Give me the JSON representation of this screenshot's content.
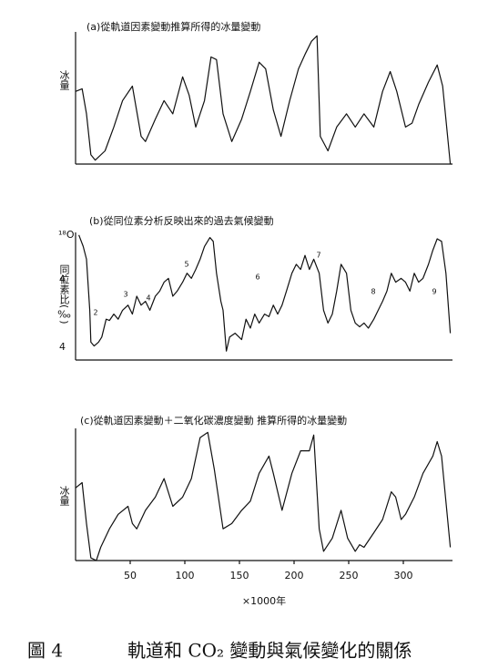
{
  "chart_data": [
    {
      "type": "line",
      "title": "(a)從軌道因素變動推算所得的冰量變動",
      "y_label": "冰量",
      "xlim": [
        0,
        345
      ],
      "ylim": [
        0,
        100
      ],
      "x": [
        0,
        6,
        10,
        14,
        18,
        27,
        35,
        43,
        52,
        60,
        64,
        73,
        81,
        89,
        98,
        104,
        110,
        118,
        124,
        129,
        135,
        143,
        152,
        160,
        168,
        174,
        181,
        188,
        196,
        204,
        210,
        216,
        221,
        224,
        231,
        239,
        248,
        256,
        264,
        273,
        281,
        288,
        294,
        302,
        308,
        314,
        323,
        331,
        336,
        343
      ],
      "series": [
        {
          "color": "#111111",
          "values": [
            55,
            57,
            38,
            7,
            3,
            10,
            28,
            48,
            59,
            21,
            17,
            34,
            48,
            38,
            66,
            52,
            28,
            48,
            81,
            79,
            38,
            17,
            34,
            55,
            77,
            72,
            41,
            21,
            48,
            72,
            83,
            93,
            97,
            21,
            10,
            28,
            38,
            28,
            38,
            28,
            55,
            70,
            55,
            28,
            31,
            45,
            62,
            75,
            59,
            0
          ]
        }
      ]
    },
    {
      "type": "line",
      "title": "(b)從同位素分析反映出來的過去氣候變動",
      "y_label_top": "¹⁸O",
      "y_label": "同位素比(‰)",
      "side_labels": [
        "4",
        "4"
      ],
      "annotations": [
        "2",
        "3",
        "4",
        "5",
        "6",
        "7",
        "8",
        "9"
      ],
      "xlim": [
        0,
        345
      ],
      "ylim": [
        0,
        100
      ],
      "x": [
        3,
        7,
        10,
        13,
        14,
        17,
        21,
        24,
        28,
        31,
        35,
        39,
        43,
        48,
        52,
        56,
        60,
        64,
        68,
        73,
        77,
        81,
        85,
        89,
        93,
        98,
        102,
        106,
        110,
        114,
        118,
        123,
        126,
        129,
        133,
        135,
        138,
        141,
        146,
        152,
        156,
        160,
        164,
        168,
        173,
        177,
        181,
        185,
        189,
        193,
        198,
        202,
        206,
        210,
        214,
        218,
        223,
        227,
        231,
        235,
        239,
        243,
        248,
        252,
        256,
        260,
        264,
        268,
        273,
        277,
        281,
        285,
        289,
        293,
        298,
        302,
        306,
        310,
        314,
        318,
        323,
        327,
        331,
        335,
        339,
        343
      ],
      "series": [
        {
          "color": "#111111",
          "values": [
            98,
            89,
            79,
            39,
            14,
            11,
            14,
            18,
            32,
            31,
            36,
            32,
            39,
            43,
            36,
            50,
            43,
            46,
            39,
            50,
            54,
            61,
            64,
            50,
            54,
            61,
            68,
            64,
            71,
            79,
            89,
            96,
            93,
            68,
            46,
            39,
            7,
            18,
            21,
            16,
            32,
            25,
            36,
            29,
            36,
            34,
            43,
            36,
            43,
            54,
            68,
            75,
            71,
            82,
            71,
            79,
            68,
            39,
            29,
            36,
            54,
            75,
            68,
            39,
            29,
            26,
            29,
            25,
            32,
            39,
            46,
            54,
            68,
            61,
            64,
            61,
            54,
            68,
            61,
            64,
            75,
            86,
            95,
            93,
            68,
            21
          ]
        }
      ]
    },
    {
      "type": "line",
      "title": "(c)從軌道因素變動＋二氧化碳濃度變動 推算所得的冰量變動",
      "y_label": "冰量",
      "x_label": "×1000年",
      "xlim": [
        0,
        345
      ],
      "ylim": [
        0,
        100
      ],
      "xticks": [
        50,
        100,
        150,
        200,
        250,
        300
      ],
      "x": [
        0,
        6,
        10,
        14,
        19,
        23,
        31,
        39,
        48,
        52,
        56,
        64,
        73,
        81,
        89,
        98,
        106,
        114,
        121,
        127,
        135,
        143,
        152,
        160,
        168,
        177,
        181,
        189,
        198,
        206,
        214,
        218,
        223,
        227,
        235,
        243,
        249,
        256,
        260,
        264,
        273,
        281,
        289,
        293,
        298,
        302,
        310,
        318,
        327,
        331,
        335,
        343
      ],
      "series": [
        {
          "color": "#111111",
          "values": [
            55,
            59,
            28,
            2,
            0,
            10,
            24,
            35,
            41,
            28,
            24,
            38,
            48,
            62,
            41,
            48,
            62,
            93,
            97,
            69,
            24,
            28,
            38,
            45,
            66,
            79,
            66,
            38,
            66,
            83,
            83,
            95,
            24,
            7,
            17,
            38,
            17,
            7,
            12,
            10,
            21,
            31,
            52,
            48,
            31,
            35,
            48,
            66,
            79,
            90,
            79,
            10
          ]
        }
      ]
    }
  ],
  "figure_label": "圖 4",
  "figure_caption": "軌道和 CO₂ 變動與氣候變化的關係"
}
